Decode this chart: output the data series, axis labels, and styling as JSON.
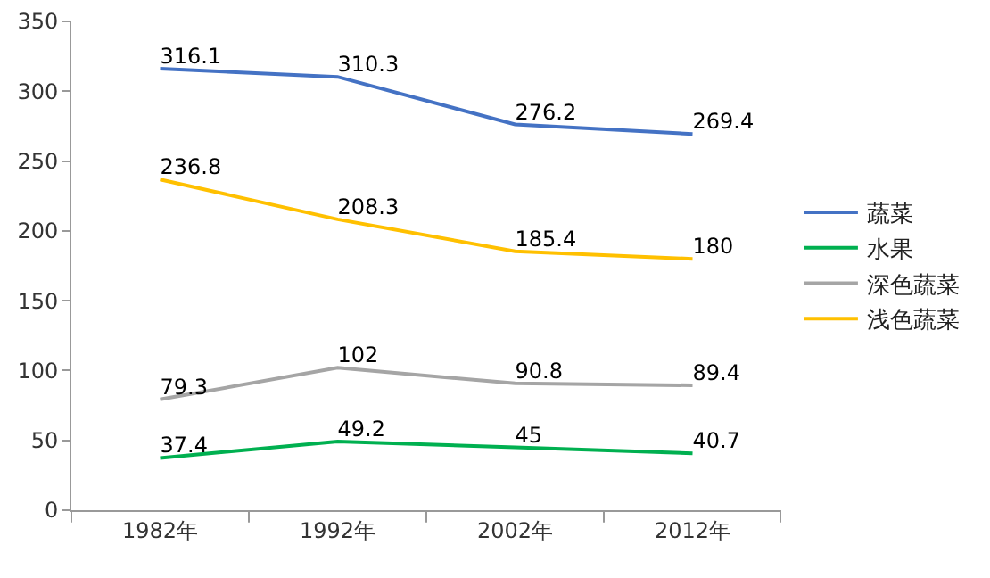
{
  "chart_data": {
    "type": "line",
    "categories": [
      "1982年",
      "1992年",
      "2002年",
      "2012年"
    ],
    "series": [
      {
        "name": "蔬菜",
        "color": "#4472c4",
        "values": [
          316.1,
          310.3,
          276.2,
          269.4
        ]
      },
      {
        "name": "水果",
        "color": "#00b050",
        "values": [
          37.4,
          49.2,
          45,
          40.7
        ]
      },
      {
        "name": "深色蔬菜",
        "color": "#a5a5a5",
        "values": [
          79.3,
          102,
          90.8,
          89.4
        ]
      },
      {
        "name": "浅色蔬菜",
        "color": "#ffc000",
        "values": [
          236.8,
          208.3,
          185.4,
          180
        ]
      }
    ],
    "ylim": [
      0,
      350
    ],
    "yticks": [
      0,
      50,
      100,
      150,
      200,
      250,
      300,
      350
    ],
    "grid": false,
    "legend": "right",
    "marker": "none",
    "line_style": "solid",
    "data_labels": true
  }
}
